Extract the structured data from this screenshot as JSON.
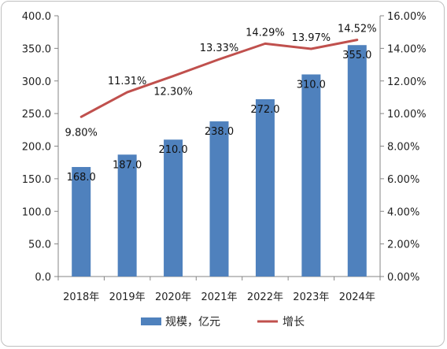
{
  "chart_data": {
    "type": "bar",
    "categories": [
      "2018年",
      "2019年",
      "2020年",
      "2021年",
      "2022年",
      "2023年",
      "2024年"
    ],
    "series": [
      {
        "name": "规模，亿元",
        "type": "bar",
        "axis": "left",
        "values": [
          168.0,
          187.0,
          210.0,
          238.0,
          272.0,
          310.0,
          355.0
        ],
        "labels": [
          "168.0",
          "187.0",
          "210.0",
          "238.0",
          "272.0",
          "310.0",
          "355.0"
        ]
      },
      {
        "name": "增长",
        "type": "line",
        "axis": "right",
        "values": [
          9.8,
          11.31,
          12.3,
          13.33,
          14.29,
          13.97,
          14.52
        ],
        "labels": [
          "9.80%",
          "11.31%",
          "12.30%",
          "13.33%",
          "14.29%",
          "13.97%",
          "14.52%"
        ]
      }
    ],
    "y_left": {
      "ylim": [
        0,
        400
      ],
      "ticks": [
        "0.0",
        "50.0",
        "100.0",
        "150.0",
        "200.0",
        "250.0",
        "300.0",
        "350.0",
        "400.0"
      ]
    },
    "y_right": {
      "ylim": [
        0,
        16
      ],
      "ticks": [
        "0.00%",
        "2.00%",
        "4.00%",
        "6.00%",
        "8.00%",
        "10.00%",
        "12.00%",
        "14.00%",
        "16.00%"
      ]
    },
    "grid": false,
    "legend": "bottom",
    "colors": {
      "bar": "#4f81bd",
      "line": "#c0504d"
    }
  }
}
